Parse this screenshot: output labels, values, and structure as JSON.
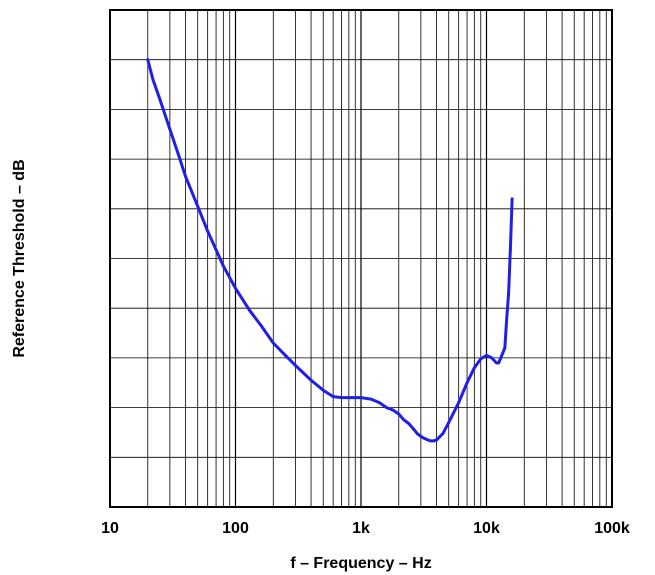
{
  "chart_data": {
    "type": "line",
    "title": "",
    "xlabel": "f – Frequency – Hz",
    "ylabel": "Reference Threshold – dB",
    "x_scale": "log",
    "xlim": [
      10,
      100000
    ],
    "x_ticks": [
      {
        "value": 10,
        "label": "10"
      },
      {
        "value": 100,
        "label": "100"
      },
      {
        "value": 1000,
        "label": "1k"
      },
      {
        "value": 10000,
        "label": "10k"
      },
      {
        "value": 100000,
        "label": "100k"
      }
    ],
    "y_gridlines": 10,
    "y_tick_labels": "none",
    "grid": true,
    "series_color": "#1f1fe6",
    "series": [
      {
        "x": [
          20,
          22,
          25,
          30,
          35,
          40,
          50,
          60,
          80,
          100,
          130,
          160,
          200,
          250,
          300,
          400,
          500,
          600,
          700,
          800,
          1000,
          1200,
          1400,
          1600,
          1800,
          2000,
          2200,
          2400,
          2600,
          2800,
          3000,
          3200,
          3400,
          3600,
          3800,
          4000,
          4500,
          5000,
          6000,
          7000,
          8000,
          9000,
          10000,
          11000,
          12000,
          12500,
          13000,
          14000,
          14500,
          15000,
          15500,
          16000
        ],
        "y": [
          9.0,
          8.6,
          8.2,
          7.6,
          7.1,
          6.65,
          6.05,
          5.55,
          4.85,
          4.4,
          3.95,
          3.65,
          3.3,
          3.05,
          2.85,
          2.55,
          2.35,
          2.22,
          2.2,
          2.2,
          2.2,
          2.17,
          2.1,
          2.0,
          1.95,
          1.87,
          1.75,
          1.68,
          1.58,
          1.48,
          1.42,
          1.38,
          1.35,
          1.33,
          1.33,
          1.35,
          1.48,
          1.7,
          2.1,
          2.5,
          2.8,
          2.98,
          3.05,
          3.0,
          2.9,
          2.9,
          3.0,
          3.2,
          3.8,
          4.3,
          5.2,
          6.2
        ]
      }
    ]
  }
}
